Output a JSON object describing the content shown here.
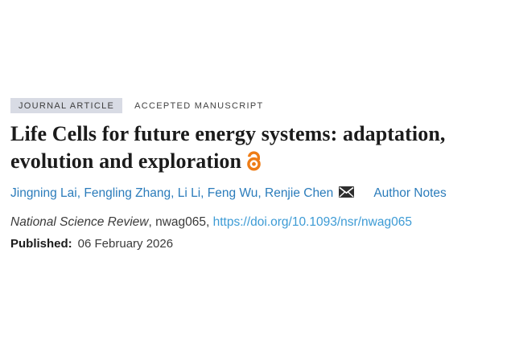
{
  "badge": {
    "type_label": "JOURNAL ARTICLE",
    "status_label": "ACCEPTED MANUSCRIPT"
  },
  "article": {
    "title": "Life Cells for future energy systems: adaptation, evolution and exploration",
    "authors": [
      "Jingning Lai",
      "Fengling Zhang",
      "Li Li",
      "Feng Wu",
      "Renjie Chen"
    ],
    "authors_separator": ", ",
    "author_notes_label": "Author Notes",
    "journal_name": "National Science Review",
    "article_id": "nwag065",
    "citation_separator_1": ", ",
    "citation_separator_2": ", ",
    "doi_url": "https://doi.org/10.1093/nsr/nwag065",
    "published_label": "Published:",
    "published_date": "06 February 2026"
  },
  "icons": {
    "open_access": "open-access-lock-icon",
    "correspondence": "envelope-icon"
  },
  "colors": {
    "badge_bg": "#d8dbe4",
    "badge_text": "#3d3d3d",
    "title_text": "#1b1b1b",
    "author_link_blue": "#2b7cbb",
    "doi_link_blue": "#3d9bd5",
    "open_access_orange": "#ee7c16",
    "body_text_gray": "#3a3a3a"
  }
}
